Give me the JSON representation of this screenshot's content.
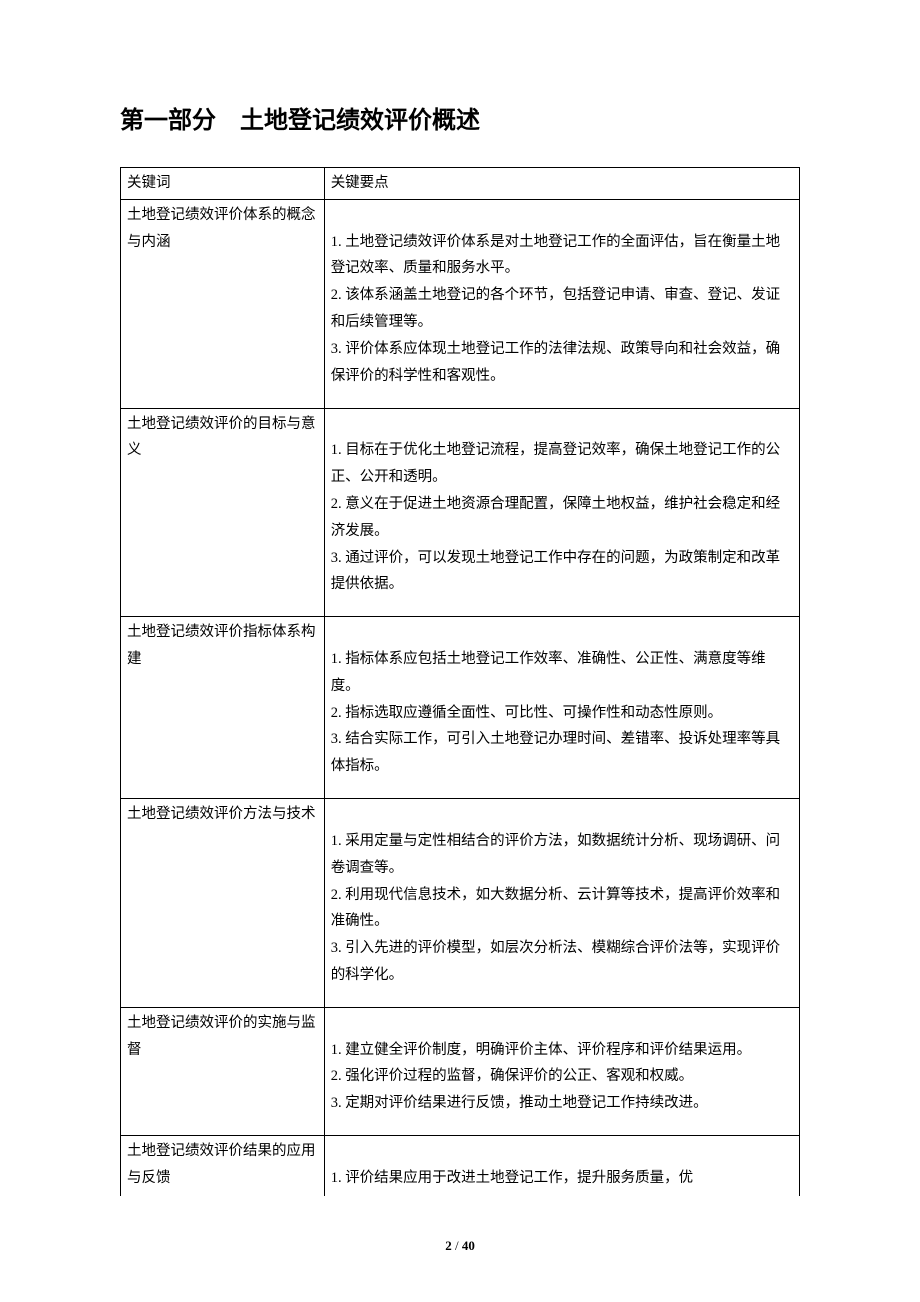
{
  "title": "第一部分　土地登记绩效评价概述",
  "header": {
    "col1": "关键词",
    "col2": "关键要点"
  },
  "rows": [
    {
      "keyword": "土地登记绩效评价体系的概念与内涵",
      "points": [
        "1. 土地登记绩效评价体系是对土地登记工作的全面评估，旨在衡量土地登记效率、质量和服务水平。",
        "2. 该体系涵盖土地登记的各个环节，包括登记申请、审查、登记、发证和后续管理等。",
        "3. 评价体系应体现土地登记工作的法律法规、政策导向和社会效益，确保评价的科学性和客观性。"
      ]
    },
    {
      "keyword": "土地登记绩效评价的目标与意义",
      "points": [
        "1. 目标在于优化土地登记流程，提高登记效率，确保土地登记工作的公正、公开和透明。",
        "2. 意义在于促进土地资源合理配置，保障土地权益，维护社会稳定和经济发展。",
        "3. 通过评价，可以发现土地登记工作中存在的问题，为政策制定和改革提供依据。"
      ]
    },
    {
      "keyword": "土地登记绩效评价指标体系构建",
      "points": [
        "1. 指标体系应包括土地登记工作效率、准确性、公正性、满意度等维度。",
        "2. 指标选取应遵循全面性、可比性、可操作性和动态性原则。",
        "3. 结合实际工作，可引入土地登记办理时间、差错率、投诉处理率等具体指标。"
      ]
    },
    {
      "keyword": "土地登记绩效评价方法与技术",
      "points": [
        "1. 采用定量与定性相结合的评价方法，如数据统计分析、现场调研、问卷调查等。",
        "2. 利用现代信息技术，如大数据分析、云计算等技术，提高评价效率和准确性。",
        "3. 引入先进的评价模型，如层次分析法、模糊综合评价法等，实现评价的科学化。"
      ]
    },
    {
      "keyword": "土地登记绩效评价的实施与监督",
      "points": [
        "1. 建立健全评价制度，明确评价主体、评价程序和评价结果运用。",
        "2. 强化评价过程的监督，确保评价的公正、客观和权威。",
        "3. 定期对评价结果进行反馈，推动土地登记工作持续改进。"
      ]
    },
    {
      "keyword": "土地登记绩效评价结果的应用与反馈",
      "points": [
        "1. 评价结果应用于改进土地登记工作，提升服务质量，优"
      ]
    }
  ],
  "footer": {
    "page": "2",
    "sep": " / ",
    "total": "40"
  }
}
